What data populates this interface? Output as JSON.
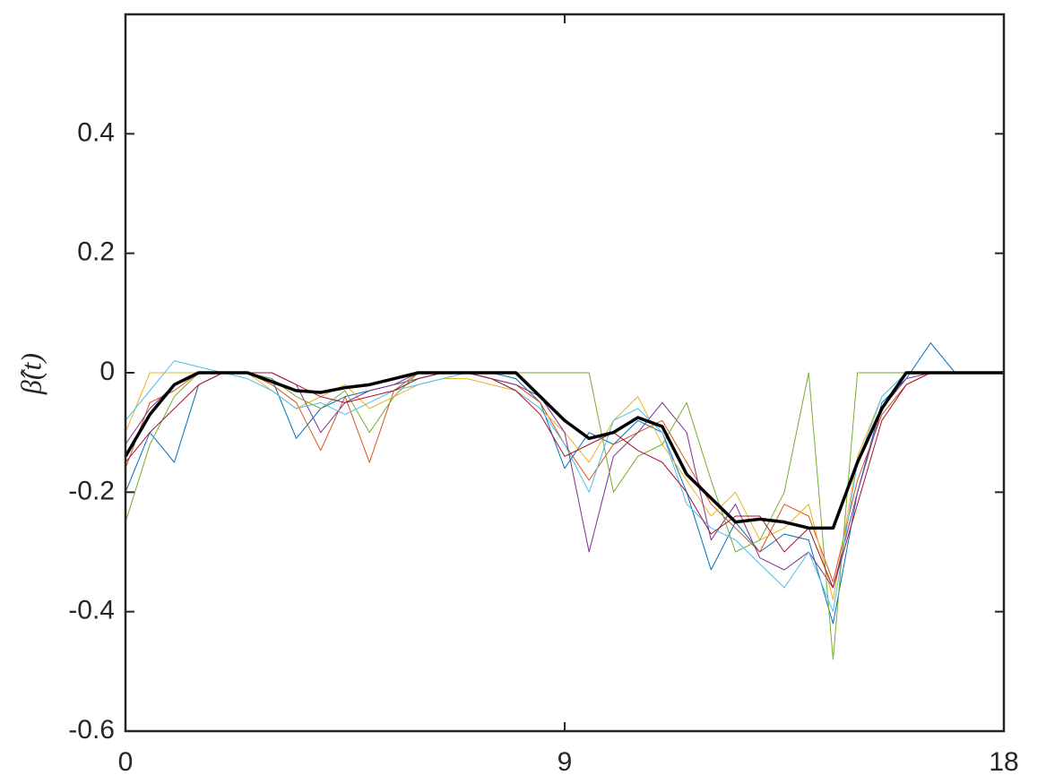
{
  "chart_data": {
    "type": "line",
    "ylabel": "β̂(t)",
    "x": [
      0,
      0.5,
      1,
      1.5,
      2,
      2.5,
      3,
      3.5,
      4,
      4.5,
      5,
      5.5,
      6,
      6.5,
      7,
      7.5,
      8,
      8.5,
      9,
      9.5,
      10,
      10.5,
      11,
      11.5,
      12,
      12.5,
      13,
      13.5,
      14,
      14.5,
      15,
      15.5,
      16,
      16.5,
      17,
      17.5,
      18
    ],
    "xlim": [
      0,
      18
    ],
    "xticks": [
      0,
      9,
      18
    ],
    "ylim": [
      -0.6,
      0.6
    ],
    "yticks": [
      -0.6,
      -0.4,
      -0.2,
      0,
      0.2,
      0.4
    ],
    "grid": false,
    "series": [
      {
        "color": "#0072bd",
        "linewidth": 1,
        "values": [
          -0.2,
          -0.1,
          -0.15,
          -0.02,
          0,
          0,
          -0.01,
          -0.11,
          -0.06,
          -0.04,
          -0.03,
          -0.02,
          -0.01,
          0,
          0,
          0,
          -0.01,
          -0.05,
          -0.16,
          -0.1,
          -0.12,
          -0.08,
          -0.1,
          -0.2,
          -0.33,
          -0.25,
          -0.3,
          -0.27,
          -0.28,
          -0.42,
          -0.2,
          -0.05,
          -0.01,
          0.05,
          0,
          0,
          0
        ]
      },
      {
        "color": "#d95319",
        "linewidth": 1,
        "values": [
          -0.16,
          -0.05,
          -0.03,
          0,
          0,
          0,
          -0.02,
          -0.05,
          -0.13,
          -0.04,
          -0.15,
          -0.03,
          0,
          0,
          0,
          -0.01,
          -0.02,
          -0.05,
          -0.12,
          -0.18,
          -0.12,
          -0.1,
          -0.08,
          -0.15,
          -0.22,
          -0.26,
          -0.3,
          -0.22,
          -0.24,
          -0.35,
          -0.18,
          -0.07,
          -0.02,
          0,
          0,
          0,
          0
        ]
      },
      {
        "color": "#edb120",
        "linewidth": 1,
        "values": [
          -0.1,
          0,
          0,
          0,
          0,
          0,
          -0.03,
          -0.06,
          -0.04,
          -0.02,
          -0.06,
          -0.04,
          -0.02,
          -0.01,
          -0.01,
          -0.02,
          -0.03,
          -0.06,
          -0.1,
          -0.15,
          -0.08,
          -0.04,
          -0.12,
          -0.18,
          -0.24,
          -0.2,
          -0.28,
          -0.26,
          -0.22,
          -0.38,
          -0.14,
          -0.04,
          0,
          0,
          0,
          0,
          0
        ]
      },
      {
        "color": "#7e2f8e",
        "linewidth": 1,
        "values": [
          -0.12,
          -0.06,
          -0.02,
          0,
          0,
          0,
          0,
          -0.02,
          -0.1,
          -0.05,
          -0.03,
          -0.02,
          0,
          0,
          0,
          -0.01,
          -0.02,
          -0.04,
          -0.1,
          -0.3,
          -0.14,
          -0.1,
          -0.05,
          -0.1,
          -0.28,
          -0.22,
          -0.31,
          -0.33,
          -0.3,
          -0.36,
          -0.2,
          -0.06,
          -0.01,
          0,
          0,
          0,
          0
        ]
      },
      {
        "color": "#77ac30",
        "linewidth": 1,
        "values": [
          -0.25,
          -0.12,
          -0.04,
          0,
          0,
          0,
          -0.01,
          -0.04,
          -0.06,
          -0.03,
          -0.1,
          -0.04,
          0,
          0,
          0,
          0,
          0,
          0,
          0,
          0,
          -0.2,
          -0.14,
          -0.12,
          -0.05,
          -0.18,
          -0.3,
          -0.28,
          -0.2,
          0,
          -0.48,
          0,
          0,
          0,
          0,
          0,
          0,
          0
        ]
      },
      {
        "color": "#4dbeee",
        "linewidth": 1,
        "values": [
          -0.08,
          -0.03,
          0.02,
          0.01,
          0,
          -0.01,
          -0.03,
          -0.06,
          -0.05,
          -0.07,
          -0.05,
          -0.03,
          -0.02,
          -0.01,
          0,
          -0.01,
          -0.03,
          -0.06,
          -0.12,
          -0.2,
          -0.08,
          -0.06,
          -0.1,
          -0.22,
          -0.26,
          -0.28,
          -0.32,
          -0.36,
          -0.3,
          -0.4,
          -0.15,
          -0.04,
          0,
          0,
          0,
          0,
          0
        ]
      },
      {
        "color": "#a2142f",
        "linewidth": 1,
        "values": [
          -0.15,
          -0.1,
          -0.06,
          -0.02,
          0,
          0,
          0,
          -0.02,
          -0.04,
          -0.05,
          -0.04,
          -0.03,
          -0.01,
          0,
          0,
          -0.01,
          -0.03,
          -0.07,
          -0.14,
          -0.12,
          -0.1,
          -0.13,
          -0.15,
          -0.2,
          -0.27,
          -0.24,
          -0.24,
          -0.3,
          -0.26,
          -0.36,
          -0.22,
          -0.08,
          -0.02,
          0,
          0,
          0,
          0
        ]
      },
      {
        "color": "#000000",
        "linewidth": 3.5,
        "values": [
          -0.14,
          -0.07,
          -0.02,
          0,
          0,
          0,
          -0.015,
          -0.03,
          -0.033,
          -0.025,
          -0.02,
          -0.01,
          0,
          0,
          0,
          0,
          0,
          -0.04,
          -0.08,
          -0.11,
          -0.1,
          -0.075,
          -0.09,
          -0.17,
          -0.21,
          -0.25,
          -0.245,
          -0.25,
          -0.26,
          -0.26,
          -0.15,
          -0.06,
          0,
          0,
          0,
          0,
          0
        ]
      }
    ]
  }
}
